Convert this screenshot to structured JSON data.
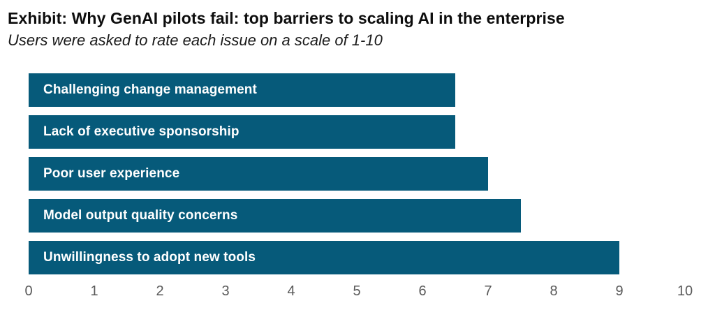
{
  "chart_data": {
    "type": "bar",
    "orientation": "horizontal",
    "title": "Exhibit: Why GenAI pilots fail: top barriers to scaling AI in the enterprise",
    "subtitle": "Users were asked to rate each issue on a scale of 1-10",
    "categories": [
      "Challenging change management",
      "Lack of executive sponsorship",
      "Poor user experience",
      "Model output quality concerns",
      "Unwillingness to adopt new tools"
    ],
    "values": [
      6.5,
      6.5,
      7,
      7.5,
      9
    ],
    "xlim": [
      0,
      10
    ],
    "x_ticks": [
      "0",
      "1",
      "2",
      "3",
      "4",
      "5",
      "6",
      "7",
      "8",
      "9",
      "10"
    ],
    "grid": false,
    "legend": false,
    "bar_labels_inside": true,
    "colors": {
      "bar": "#065a7a",
      "bar_label": "#ffffff",
      "tick_label": "#595959",
      "title": "#0d0d0d",
      "background": "#ffffff"
    }
  }
}
